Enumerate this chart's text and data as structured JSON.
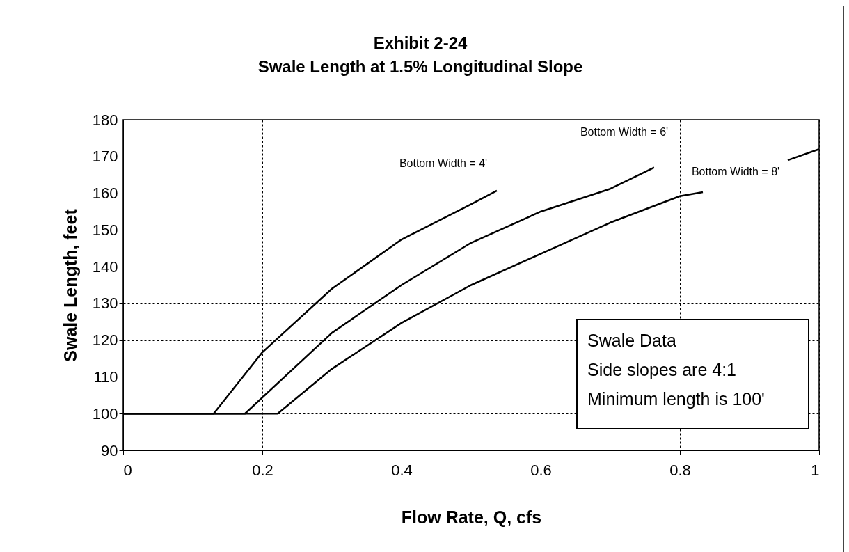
{
  "chart_data": {
    "type": "line",
    "title": "Exhibit 2-24",
    "subtitle": "Swale Length at 1.5% Longitudinal Slope",
    "xlabel": "Flow Rate, Q, cfs",
    "ylabel": "Swale Length, feet",
    "xlim": [
      0,
      1
    ],
    "ylim": [
      90,
      180
    ],
    "xticks": [
      0,
      0.2,
      0.4,
      0.6,
      0.8,
      1
    ],
    "yticks": [
      90,
      100,
      110,
      120,
      130,
      140,
      150,
      160,
      170,
      180
    ],
    "grid": true,
    "legend": false,
    "marker": "none",
    "line_style": "solid",
    "series": [
      {
        "color": "#000000",
        "x": [
          0,
          0.13,
          0.2,
          0.3,
          0.4,
          0.5,
          0.537
        ],
        "values": [
          100,
          100,
          116.7,
          134,
          147.4,
          157,
          160.7
        ]
      },
      {
        "color": "#000000",
        "x": [
          0,
          0.175,
          0.3,
          0.4,
          0.5,
          0.6,
          0.7,
          0.763
        ],
        "values": [
          100,
          100,
          122,
          135,
          146.5,
          155,
          161.2,
          167
        ]
      },
      {
        "color": "#000000",
        "x": [
          0,
          0.222,
          0.3,
          0.4,
          0.5,
          0.6,
          0.7,
          0.8,
          0.833,
          0.9,
          0.955,
          1
        ],
        "values": [
          100,
          100,
          112.2,
          124.7,
          135,
          143.5,
          152,
          159.2,
          160.3,
          null,
          169,
          172
        ]
      }
    ],
    "annotations": [
      "Bottom Width = 4'",
      "Bottom Width = 6'",
      "Bottom Width = 8'",
      "Swale Data",
      "Side slopes are 4:1",
      "Minimum length is 100'"
    ]
  }
}
